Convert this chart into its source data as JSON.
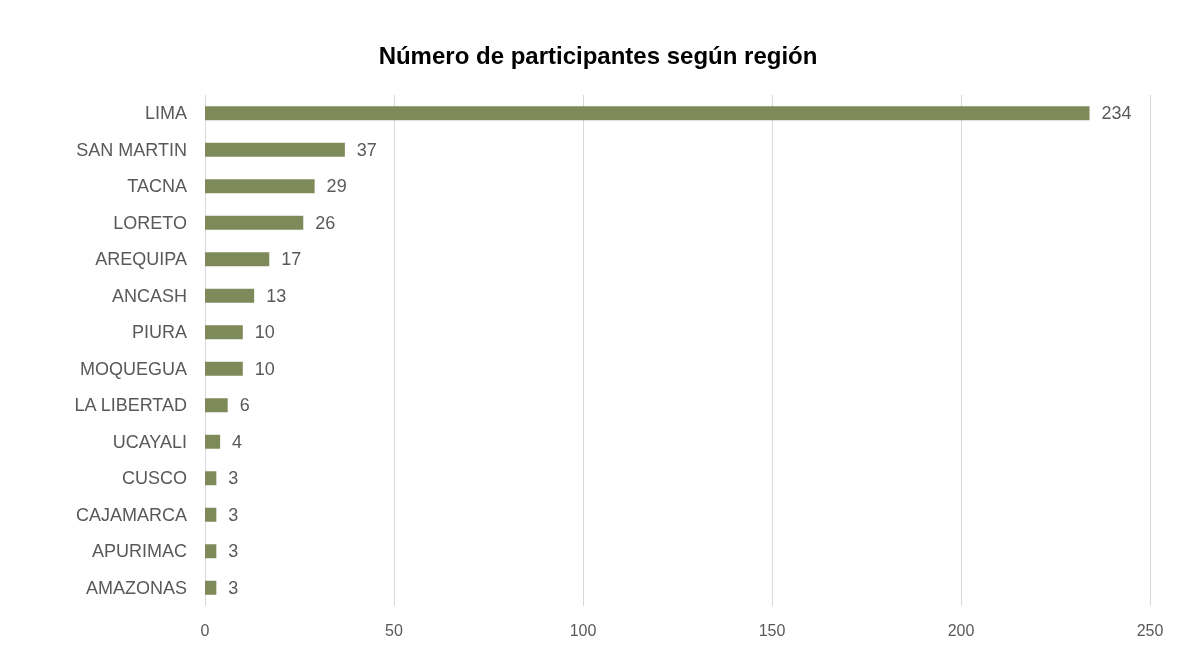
{
  "chart_data": {
    "type": "bar",
    "orientation": "horizontal",
    "title": "Número de participantes según región",
    "categories": [
      "LIMA",
      "SAN MARTIN",
      "TACNA",
      "LORETO",
      "AREQUIPA",
      "ANCASH",
      "PIURA",
      "MOQUEGUA",
      "LA LIBERTAD",
      "UCAYALI",
      "CUSCO",
      "CAJAMARCA",
      "APURIMAC",
      "AMAZONAS"
    ],
    "values": [
      234,
      37,
      29,
      26,
      17,
      13,
      10,
      10,
      6,
      4,
      3,
      3,
      3,
      3
    ],
    "color": "#7f8a5b",
    "xlim": [
      0,
      250
    ],
    "xticks": [
      0,
      50,
      100,
      150,
      200,
      250
    ],
    "grid": "x",
    "data_labels": true
  }
}
